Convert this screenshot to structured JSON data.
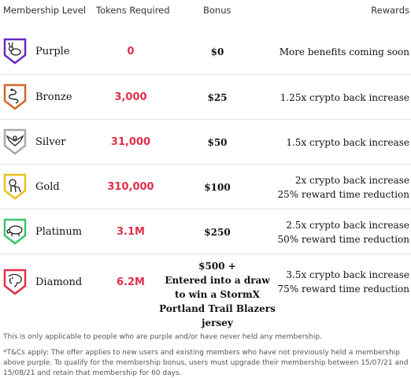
{
  "header": {
    "level": "Membership Level",
    "tokens": "Tokens Required",
    "bonus": "Bonus",
    "rewards": "Rewards"
  },
  "colors": {
    "purple": "#6a2bbf",
    "bronze": "#d4682a",
    "silver": "#a9a9a9",
    "gold": "#e8c11a",
    "platinum": "#3cc46a",
    "diamond": "#e0304a",
    "tokens_text": "#e0304a"
  },
  "rows": [
    {
      "level": "Purple",
      "tokens": "0",
      "bonus": "$0",
      "bonus_extra": [
        "",
        "",
        ""
      ],
      "reward_1": "More benefits coming soon",
      "reward_2": "",
      "icon": "rabbit-icon"
    },
    {
      "level": "Bronze",
      "tokens": "3,000",
      "bonus": "$25",
      "bonus_extra": [
        "",
        "",
        ""
      ],
      "reward_1": "1.25x crypto back increase",
      "reward_2": "",
      "icon": "snake-icon"
    },
    {
      "level": "Silver",
      "tokens": "31,000",
      "bonus": "$50",
      "bonus_extra": [
        "",
        "",
        ""
      ],
      "reward_1": "1.5x crypto back increase",
      "reward_2": "",
      "icon": "eagle-icon"
    },
    {
      "level": "Gold",
      "tokens": "310,000",
      "bonus": "$100",
      "bonus_extra": [
        "",
        "",
        ""
      ],
      "reward_1": "2x crypto back increase",
      "reward_2": "25% reward time reduction",
      "icon": "lion-icon"
    },
    {
      "level": "Platinum",
      "tokens": "3.1M",
      "bonus": "$250",
      "bonus_extra": [
        "",
        "",
        ""
      ],
      "reward_1": "2.5x crypto back increase",
      "reward_2": "50% reward time reduction",
      "icon": "hippo-icon"
    },
    {
      "level": "Diamond",
      "tokens": "6.2M",
      "bonus": "$500 +",
      "bonus_extra": [
        "Entered into a draw",
        "to win a StormX",
        "Portland Trail Blazers jersey"
      ],
      "reward_1": "3.5x crypto back increase",
      "reward_2": "75% reward time reduction",
      "icon": "elephant-icon"
    }
  ],
  "notes": {
    "note_1": "This is only applicable to people who are purple and/or have never held any membership.",
    "note_2": "*T&Cs apply: The offer applies to new users and existing members who have not previously held a membership above purple. To qualify for the membership bonus, users must upgrade their membership between 15/07/21 and 15/08/21 and retain that membership for 60 days."
  }
}
